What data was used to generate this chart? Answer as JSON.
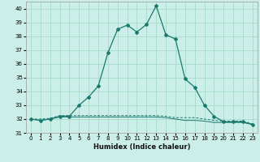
{
  "title": "",
  "xlabel": "Humidex (Indice chaleur)",
  "background_color": "#cceee8",
  "grid_color": "#aaddcc",
  "line_color": "#1a7a6e",
  "xlim": [
    -0.5,
    23.5
  ],
  "ylim": [
    31,
    40.5
  ],
  "yticks": [
    31,
    32,
    33,
    34,
    35,
    36,
    37,
    38,
    39,
    40
  ],
  "xticks": [
    0,
    1,
    2,
    3,
    4,
    5,
    6,
    7,
    8,
    9,
    10,
    11,
    12,
    13,
    14,
    15,
    16,
    17,
    18,
    19,
    20,
    21,
    22,
    23
  ],
  "series1_x": [
    0,
    1,
    2,
    3,
    4,
    5,
    6,
    7,
    8,
    9,
    10,
    11,
    12,
    13,
    14,
    15,
    16,
    17,
    18,
    19,
    20,
    21,
    22,
    23
  ],
  "series1_y": [
    32.0,
    31.9,
    32.0,
    32.2,
    32.2,
    33.0,
    33.6,
    34.4,
    36.8,
    38.5,
    38.8,
    38.3,
    38.85,
    40.2,
    38.1,
    37.8,
    34.9,
    34.3,
    33.0,
    32.2,
    31.8,
    31.8,
    31.8,
    31.6
  ],
  "series2_x": [
    0,
    1,
    2,
    3,
    4,
    5,
    6,
    7,
    8,
    9,
    10,
    11,
    12,
    13,
    14,
    15,
    16,
    17,
    18,
    19,
    20,
    21,
    22,
    23
  ],
  "series2_y": [
    32.0,
    31.9,
    32.0,
    32.15,
    32.15,
    32.15,
    32.15,
    32.15,
    32.15,
    32.15,
    32.15,
    32.15,
    32.15,
    32.15,
    32.1,
    32.0,
    31.9,
    31.9,
    31.85,
    31.75,
    31.75,
    31.75,
    31.75,
    31.6
  ],
  "series3_x": [
    0,
    1,
    2,
    3,
    4,
    5,
    6,
    7,
    8,
    9,
    10,
    11,
    12,
    13,
    14,
    15,
    16,
    17,
    18,
    19,
    20,
    21,
    22,
    23
  ],
  "series3_y": [
    32.0,
    32.0,
    32.05,
    32.25,
    32.25,
    32.25,
    32.25,
    32.25,
    32.25,
    32.25,
    32.25,
    32.25,
    32.25,
    32.25,
    32.2,
    32.1,
    32.1,
    32.1,
    32.0,
    31.9,
    31.85,
    31.85,
    31.85,
    31.65
  ]
}
